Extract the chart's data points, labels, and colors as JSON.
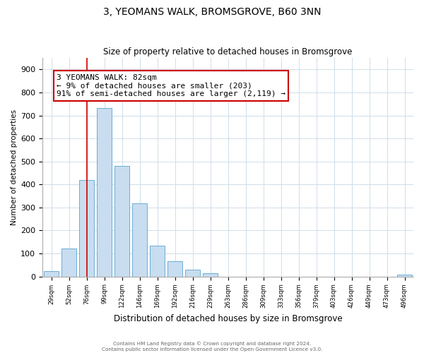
{
  "title": "3, YEOMANS WALK, BROMSGROVE, B60 3NN",
  "subtitle": "Size of property relative to detached houses in Bromsgrove",
  "xlabel": "Distribution of detached houses by size in Bromsgrove",
  "ylabel": "Number of detached properties",
  "bar_labels": [
    "29sqm",
    "52sqm",
    "76sqm",
    "99sqm",
    "122sqm",
    "146sqm",
    "169sqm",
    "192sqm",
    "216sqm",
    "239sqm",
    "263sqm",
    "286sqm",
    "309sqm",
    "333sqm",
    "356sqm",
    "379sqm",
    "403sqm",
    "426sqm",
    "449sqm",
    "473sqm",
    "496sqm"
  ],
  "bar_values": [
    22,
    122,
    420,
    733,
    482,
    318,
    134,
    65,
    29,
    15,
    0,
    0,
    0,
    0,
    0,
    0,
    0,
    0,
    0,
    0,
    8
  ],
  "bar_color": "#c8ddef",
  "bar_edge_color": "#6aaed6",
  "vline_x_index": 2,
  "vline_color": "#cc0000",
  "annotation_title": "3 YEOMANS WALK: 82sqm",
  "annotation_line1": "← 9% of detached houses are smaller (203)",
  "annotation_line2": "91% of semi-detached houses are larger (2,119) →",
  "annotation_box_color": "#ffffff",
  "annotation_box_edge": "#cc0000",
  "ylim": [
    0,
    950
  ],
  "yticks": [
    0,
    100,
    200,
    300,
    400,
    500,
    600,
    700,
    800,
    900
  ],
  "footer1": "Contains HM Land Registry data © Crown copyright and database right 2024.",
  "footer2": "Contains public sector information licensed under the Open Government Licence v3.0.",
  "bg_color": "#ffffff",
  "grid_color": "#d0dde8"
}
